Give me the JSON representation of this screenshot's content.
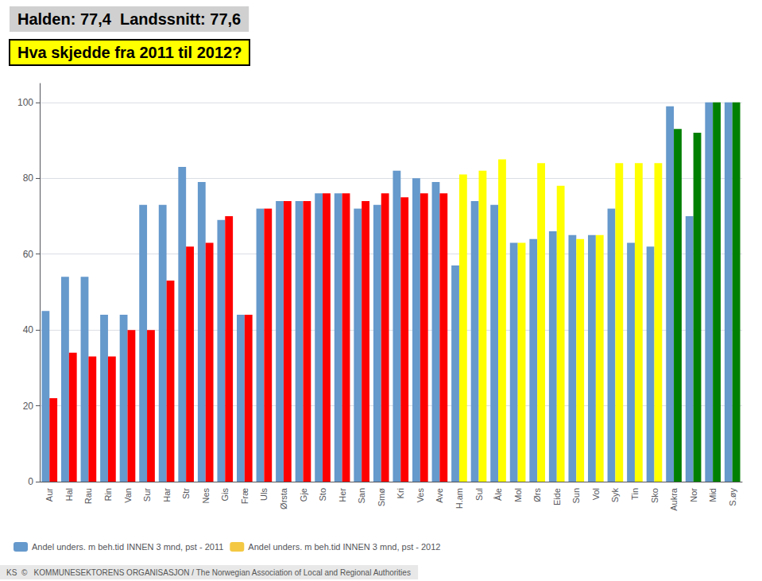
{
  "chart_data": {
    "type": "bar",
    "title": "Halden: 77,4  Landssnitt: 77,6",
    "subtitle": "Hva skjedde fra 2011 til 2012?",
    "annotations": [
      "KS  ©   KOMMUNESEKTORENS ORGANISASJON / The Norwegian Association of Local and Regional Authorities"
    ],
    "categories": [
      "Aur",
      "Hal",
      "Rau",
      "Rin",
      "Van",
      "Sur",
      "Har",
      "Str",
      "Nes",
      "Gis",
      "Fræ",
      "Uls",
      "Ørsta",
      "Gje",
      "Sto",
      "Her",
      "San",
      "Smø",
      "Kri",
      "Ves",
      "Ave",
      "H.am",
      "Sul",
      "Åle",
      "Mol",
      "Ørs",
      "Eide",
      "Sun",
      "Vol",
      "Syk",
      "Tin",
      "Sko",
      "Aukra",
      "Nor",
      "Mid",
      "S.øy"
    ],
    "series": [
      {
        "name": "Andel unders. m beh.tid INNEN 3 mnd, pst - 2011",
        "color": "#6699CC",
        "values": [
          45,
          54,
          54,
          44,
          44,
          73,
          73,
          83,
          79,
          69,
          44,
          72,
          74,
          74,
          76,
          76,
          72,
          73,
          82,
          80,
          79,
          57,
          74,
          73,
          63,
          64,
          66,
          65,
          65,
          72,
          63,
          62,
          99,
          70,
          100,
          100
        ]
      },
      {
        "name": "Andel unders. m beh.tid INNEN 3 mnd, pst - 2012",
        "color": "#F4C842",
        "colors": [
          "red",
          "red",
          "red",
          "red",
          "red",
          "red",
          "red",
          "red",
          "red",
          "red",
          "red",
          "red",
          "red",
          "red",
          "red",
          "red",
          "red",
          "red",
          "red",
          "red",
          "red",
          "yellow",
          "yellow",
          "yellow",
          "yellow",
          "yellow",
          "yellow",
          "yellow",
          "yellow",
          "yellow",
          "yellow",
          "yellow",
          "green",
          "green",
          "green",
          "green"
        ],
        "values": [
          22,
          34,
          33,
          33,
          40,
          40,
          53,
          62,
          63,
          70,
          44,
          72,
          74,
          74,
          76,
          76,
          74,
          76,
          75,
          76,
          76,
          81,
          82,
          85,
          63,
          84,
          78,
          64,
          65,
          84,
          84,
          84,
          93,
          92,
          100,
          100
        ]
      }
    ],
    "ylim": [
      0,
      105
    ],
    "yticks": [
      0,
      20,
      40,
      60,
      80,
      100
    ],
    "grid": true,
    "legend": "bottom"
  }
}
